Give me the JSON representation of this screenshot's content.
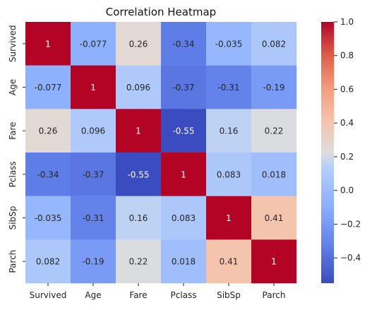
{
  "chart_data": {
    "type": "heatmap",
    "title": "Correlation Heatmap",
    "xlabel": "",
    "ylabel": "",
    "x_categories": [
      "Survived",
      "Age",
      "Fare",
      "Pclass",
      "SibSp",
      "Parch"
    ],
    "y_categories": [
      "Survived",
      "Age",
      "Fare",
      "Pclass",
      "SibSp",
      "Parch"
    ],
    "values": [
      [
        1,
        -0.077,
        0.26,
        -0.34,
        -0.035,
        0.082
      ],
      [
        -0.077,
        1,
        0.096,
        -0.37,
        -0.31,
        -0.19
      ],
      [
        0.26,
        0.096,
        1,
        -0.55,
        0.16,
        0.22
      ],
      [
        -0.34,
        -0.37,
        -0.55,
        1,
        0.083,
        0.018
      ],
      [
        -0.035,
        -0.31,
        0.16,
        0.083,
        1,
        0.41
      ],
      [
        0.082,
        -0.19,
        0.22,
        0.018,
        0.41,
        1
      ]
    ],
    "cell_labels": [
      [
        "1",
        "-0.077",
        "0.26",
        "-0.34",
        "-0.035",
        "0.082"
      ],
      [
        "-0.077",
        "1",
        "0.096",
        "-0.37",
        "-0.31",
        "-0.19"
      ],
      [
        "0.26",
        "0.096",
        "1",
        "-0.55",
        "0.16",
        "0.22"
      ],
      [
        "-0.34",
        "-0.37",
        "-0.55",
        "1",
        "0.083",
        "0.018"
      ],
      [
        "-0.035",
        "-0.31",
        "0.16",
        "0.083",
        "1",
        "0.41"
      ],
      [
        "0.082",
        "-0.19",
        "0.22",
        "0.018",
        "0.41",
        "1"
      ]
    ],
    "color_scale": {
      "name": "coolwarm",
      "vmin": -0.55,
      "vmax": 1,
      "ticks": [
        1.0,
        0.8,
        0.6,
        0.4,
        0.2,
        0.0,
        -0.2,
        -0.4
      ],
      "tick_labels": [
        "1.0",
        "0.8",
        "0.6",
        "0.4",
        "0.2",
        "0.0",
        "−0.2",
        "−0.4"
      ]
    },
    "grid": false,
    "legend": "right colorbar"
  }
}
